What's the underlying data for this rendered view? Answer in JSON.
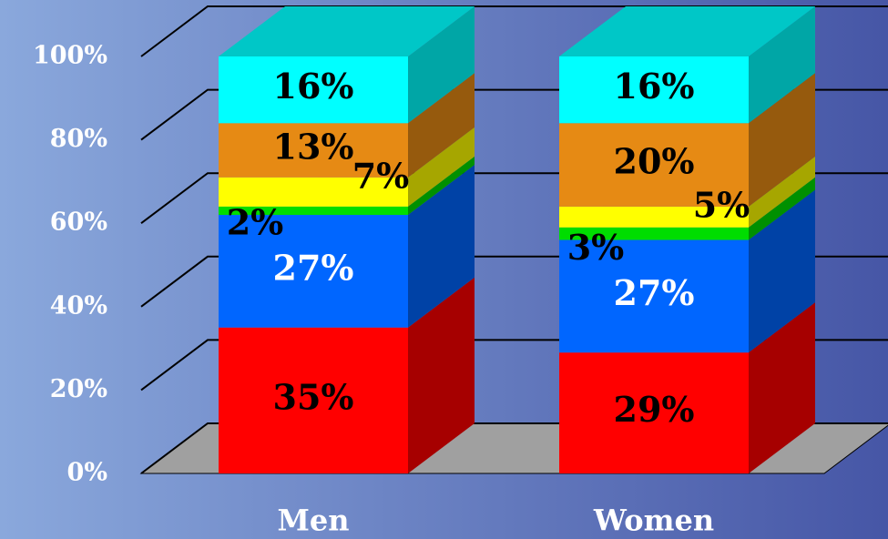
{
  "chart_data": {
    "type": "stacked_bar_3d",
    "categories": [
      "Men",
      "Women"
    ],
    "series": [
      {
        "color": "#ff0000",
        "values": [
          35,
          29
        ],
        "value_labels": [
          "35%",
          "29%"
        ],
        "label_color": "#000000"
      },
      {
        "color": "#0066ff",
        "values": [
          27,
          27
        ],
        "value_labels": [
          "27%",
          "27%"
        ],
        "label_color": "#ffffff"
      },
      {
        "color": "#00dd00",
        "values": [
          2,
          3
        ],
        "value_labels": [
          "2%",
          "3%"
        ],
        "label_color": "#000000"
      },
      {
        "color": "#ffff00",
        "values": [
          7,
          5
        ],
        "value_labels": [
          "7%",
          "5%"
        ],
        "label_color": "#000000"
      },
      {
        "color": "#e68a14",
        "values": [
          13,
          20
        ],
        "value_labels": [
          "13%",
          "20%"
        ],
        "label_color": "#000000"
      },
      {
        "color": "#00ffff",
        "values": [
          16,
          16
        ],
        "value_labels": [
          "16%",
          "16%"
        ],
        "label_color": "#000000"
      }
    ],
    "ylim": [
      0,
      100
    ],
    "yticks": [
      {
        "value": 0,
        "label": "0%"
      },
      {
        "value": 20,
        "label": "20%"
      },
      {
        "value": 40,
        "label": "40%"
      },
      {
        "value": 60,
        "label": "60%"
      },
      {
        "value": 80,
        "label": "80%"
      },
      {
        "value": 100,
        "label": "100%"
      }
    ],
    "grid": true
  }
}
